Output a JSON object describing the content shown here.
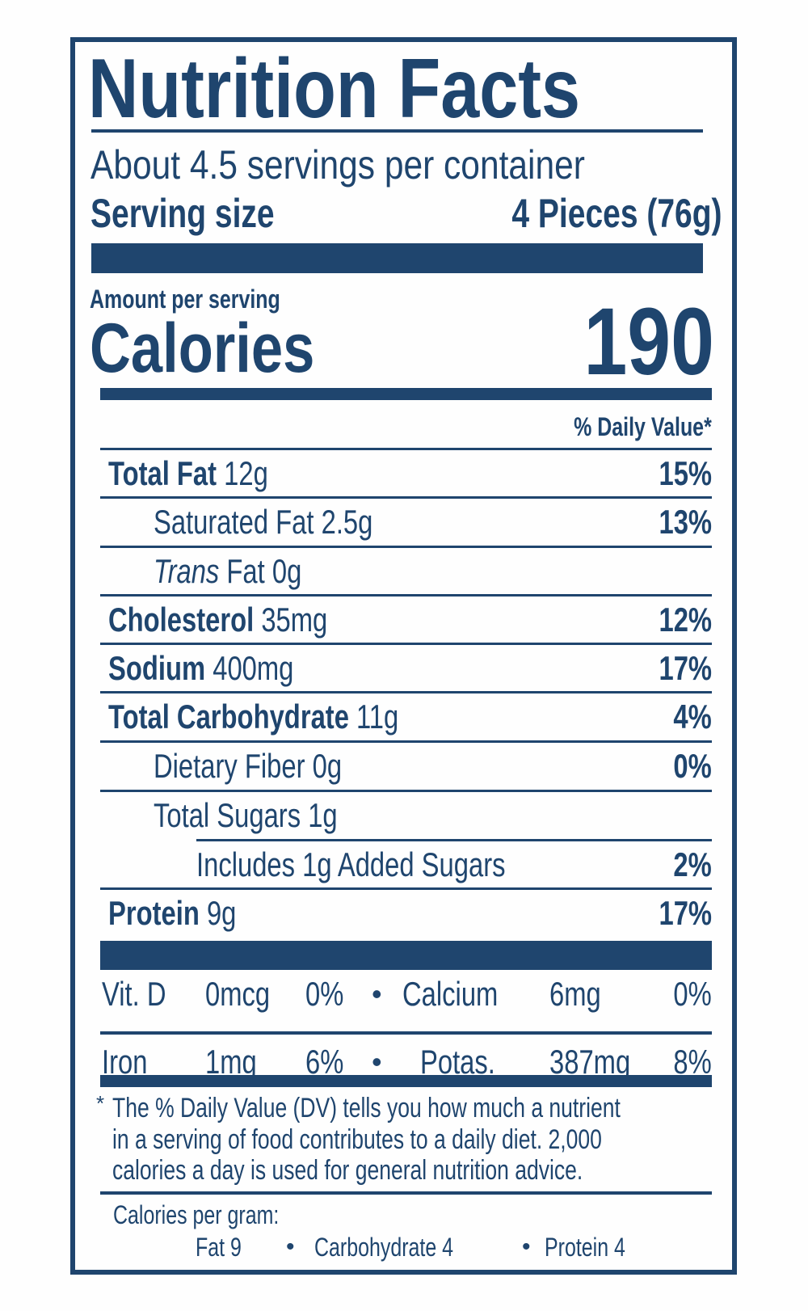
{
  "title": "Nutrition Facts",
  "servings_per_container": "About 4.5 servings per container",
  "serving_size_label": "Serving size",
  "serving_size_value": "4 Pieces (76g)",
  "amount_per_serving": "Amount per serving",
  "calories_label": "Calories",
  "calories_value": "190",
  "daily_value_header": "% Daily Value*",
  "nutrients": [
    {
      "name": "Total Fat",
      "amount": "12g",
      "dv": "15%",
      "bold": true,
      "indent": 0
    },
    {
      "name": "Saturated Fat",
      "amount": "2.5g",
      "dv": "13%",
      "bold": false,
      "indent": 1
    },
    {
      "name": "Trans",
      "name_suffix": " Fat",
      "amount": "0g",
      "dv": "",
      "bold": false,
      "italic_prefix": true,
      "indent": 1
    },
    {
      "name": "Cholesterol",
      "amount": "35mg",
      "dv": "12%",
      "bold": true,
      "indent": 0
    },
    {
      "name": "Sodium",
      "amount": "400mg",
      "dv": "17%",
      "bold": true,
      "indent": 0
    },
    {
      "name": "Total Carbohydrate",
      "amount": "11g",
      "dv": "4%",
      "bold": true,
      "indent": 0
    },
    {
      "name": "Dietary Fiber",
      "amount": "0g",
      "dv": "0%",
      "bold": false,
      "indent": 1
    },
    {
      "name": "Total Sugars",
      "amount": "1g",
      "dv": "",
      "bold": false,
      "indent": 1
    },
    {
      "name": "Includes 1g Added Sugars",
      "amount": "",
      "dv": "2%",
      "bold": false,
      "indent": 2
    },
    {
      "name": "Protein",
      "amount": "9g",
      "dv": "17%",
      "bold": true,
      "indent": 0
    }
  ],
  "vitamins": [
    [
      {
        "name": "Vit. D",
        "amount": "0mcg",
        "dv": "0%"
      },
      {
        "name": "Calcium",
        "amount": "6mg",
        "dv": "0%"
      }
    ],
    [
      {
        "name": "Iron",
        "amount": "1mg",
        "dv": "6%"
      },
      {
        "name": "Potas.",
        "amount": "387mg",
        "dv": "8%"
      }
    ]
  ],
  "bullet": "•",
  "footnote_asterisk": "*",
  "footnote_lines": [
    "The % Daily Value (DV) tells you how much a nutrient",
    "in a serving of food contributes to a daily diet. 2,000",
    "calories a day is used for general nutrition advice."
  ],
  "calories_per_gram_label": "Calories per gram:",
  "calories_per_gram": [
    "Fat 9",
    "Carbohydrate 4",
    "Protein 4"
  ],
  "colors": {
    "ink": "#1f456e",
    "background": "#fefefe"
  }
}
